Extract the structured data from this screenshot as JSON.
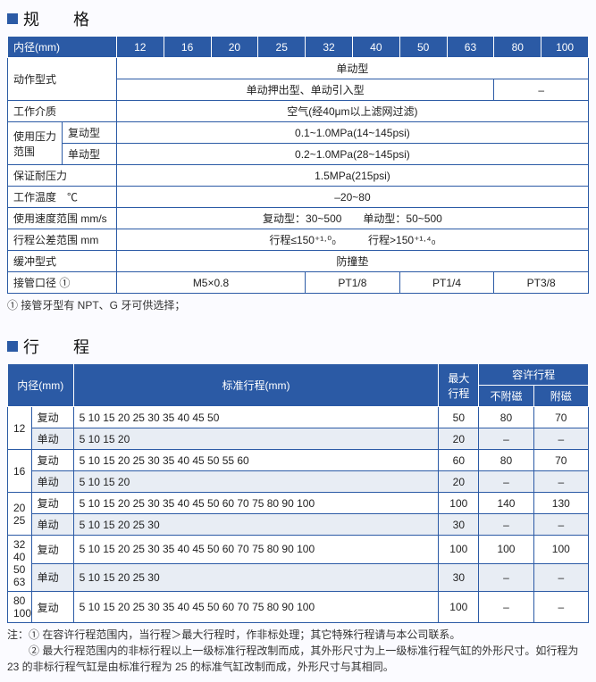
{
  "spec": {
    "heading": "规　格",
    "header_label": "内径(mm)",
    "cols": [
      "12",
      "16",
      "20",
      "25",
      "32",
      "40",
      "50",
      "63",
      "80",
      "100"
    ],
    "rows": {
      "action_type": "动作型式",
      "action_val1": "单动型",
      "action_val2": "单动押出型、单动引入型",
      "action_dash": "–",
      "medium": "工作介质",
      "medium_val": "空气(经40μm以上滤网过滤)",
      "pressure": "使用压力范围",
      "pressure_d": "复动型",
      "pressure_d_val": "0.1~1.0MPa(14~145psi)",
      "pressure_s": "单动型",
      "pressure_s_val": "0.2~1.0MPa(28~145psi)",
      "proof": "保证耐压力",
      "proof_val": "1.5MPa(215psi)",
      "temp": "工作温度　℃",
      "temp_val": "–20~80",
      "speed": "使用速度范围 mm/s",
      "speed_val": "复动型：30~500　　单动型：50~500",
      "tol": "行程公差范围 mm",
      "tol_val": "行程≤150⁺¹·⁰₀　　　行程>150⁺¹·⁴₀",
      "cushion": "缓冲型式",
      "cushion_val": "防撞垫",
      "port": "接管口径 ①",
      "port_a": "M5×0.8",
      "port_b": "PT1/8",
      "port_c": "PT1/4",
      "port_d": "PT3/8"
    },
    "footnote": "① 接管牙型有 NPT、G 牙可供选择；"
  },
  "stroke": {
    "heading": "行　程",
    "h_bore": "内径(mm)",
    "h_std": "标准行程(mm)",
    "h_max": "最大行程",
    "h_allow": "容许行程",
    "h_nomag": "不附磁",
    "h_mag": "附磁",
    "lab_d": "复动",
    "lab_s": "单动",
    "g12_d": "5  10  15  20  25  30  35  40  45  50",
    "g12_s": "5  10  15  20",
    "g12_d_max": "50",
    "g12_d_a": "80",
    "g12_d_b": "70",
    "g12_s_max": "20",
    "g12_s_a": "–",
    "g12_s_b": "–",
    "g16_d": "5  10  15  20  25  30  35  40  45  50  55  60",
    "g16_s": "5  10  15  20",
    "g16_d_max": "60",
    "g16_d_a": "80",
    "g16_d_b": "70",
    "g16_s_max": "20",
    "g16_s_a": "–",
    "g16_s_b": "–",
    "g20_d": "5  10  15  20  25  30  35  40  45  50  60  70  75  80  90  100",
    "g20_s": "5  10  15  20  25  30",
    "g20_d_max": "100",
    "g20_d_a": "140",
    "g20_d_b": "130",
    "g20_s_max": "30",
    "g20_s_a": "–",
    "g20_s_b": "–",
    "g32_d": "5  10  15  20  25  30  35  40  45  50  60  70  75  80  90  100",
    "g32_s": "5  10  15  20  25  30",
    "g32_d_max": "100",
    "g32_d_a": "100",
    "g32_d_b": "100",
    "g32_s_max": "30",
    "g32_s_a": "–",
    "g32_s_b": "–",
    "g80_d": "5  10  15  20  25  30  35  40  45  50  60  70  75  80  90  100",
    "g80_d_max": "100",
    "g80_d_a": "–",
    "g80_d_b": "–",
    "b12": "12",
    "b16": "16",
    "b20": "20",
    "b25": "25",
    "b32": "32",
    "b40": "40",
    "b50": "50",
    "b63": "63",
    "b80": "80",
    "b100": "100",
    "note1": "注：① 在容许行程范围内，当行程＞最大行程时，作非标处理；其它特殊行程请与本公司联系。",
    "note2": "　　② 最大行程范围内的非标行程以上一级标准行程改制而成，其外形尺寸为上一级标准行程气缸的外形尺寸。如行程为 23 的非标行程气缸是由标准行程为 25 的标准气缸改制而成，外形尺寸与其相同。"
  }
}
